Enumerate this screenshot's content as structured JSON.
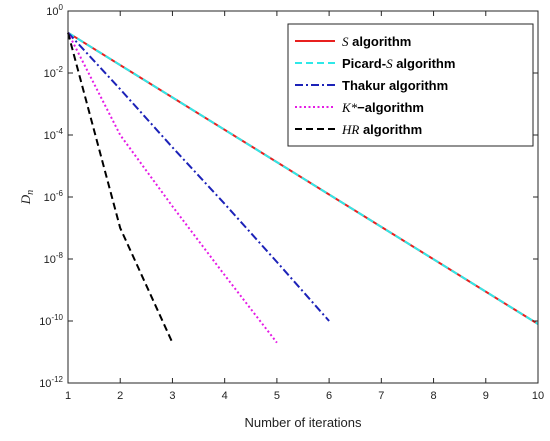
{
  "chart_data": {
    "type": "line",
    "xlabel": "Number of iterations",
    "ylabel": "D",
    "ylabel_subscript": "n",
    "xlim": [
      1,
      10
    ],
    "ylim_log10": [
      -12,
      0
    ],
    "yscale": "log",
    "x_ticks": [
      1,
      2,
      3,
      4,
      5,
      6,
      7,
      8,
      9,
      10
    ],
    "y_ticks": [
      {
        "base": "10",
        "exp": "0",
        "log": 0
      },
      {
        "base": "10",
        "exp": "-2",
        "log": -2
      },
      {
        "base": "10",
        "exp": "-4",
        "log": -4
      },
      {
        "base": "10",
        "exp": "-6",
        "log": -6
      },
      {
        "base": "10",
        "exp": "-8",
        "log": -8
      },
      {
        "base": "10",
        "exp": "-10",
        "log": -10
      },
      {
        "base": "10",
        "exp": "-12",
        "log": -12
      }
    ],
    "grid": false,
    "legend_position": "top-right",
    "series": [
      {
        "legend_math": "S",
        "legend_text": " algorithm",
        "color": "#e8201f",
        "dash": "solid",
        "x": [
          1,
          10
        ],
        "y": [
          0.2,
          8e-11
        ]
      },
      {
        "legend_prefix": "Picard-",
        "legend_math": "S",
        "legend_text": " algorithm",
        "color": "#2ee8e8",
        "dash": "dashed",
        "x": [
          1,
          10
        ],
        "y": [
          0.2,
          8e-11
        ]
      },
      {
        "legend_prefix": "Thakur algorithm",
        "color": "#1c22b8",
        "dash": "dashdot",
        "x": [
          1,
          2,
          3,
          4,
          5,
          6
        ],
        "y": [
          0.2,
          0.003,
          4e-05,
          6e-07,
          8e-09,
          1e-10
        ]
      },
      {
        "legend_math": "K*",
        "legend_text": "−algorithm",
        "color": "#e51be5",
        "dash": "dotted",
        "x": [
          1,
          2,
          3,
          4,
          5
        ],
        "y": [
          0.2,
          0.0001,
          5e-07,
          3e-09,
          2e-11
        ]
      },
      {
        "legend_math": "HR",
        "legend_text": " algorithm",
        "color": "#000000",
        "dash": "dashed",
        "x": [
          1,
          2,
          3
        ],
        "y": [
          0.2,
          1e-07,
          2e-11
        ]
      }
    ]
  }
}
